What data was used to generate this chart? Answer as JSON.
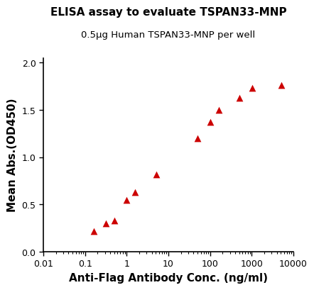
{
  "title_line1": "ELISA assay to evaluate TSPAN33-MNP",
  "title_line2": "0.5μg Human TSPAN33-MNP per well",
  "xlabel": "Anti-Flag Antibody Conc. (ng/ml)",
  "ylabel": "Mean Abs.(OD450)",
  "x_data": [
    0.16,
    0.32,
    0.51,
    1.0,
    1.6,
    5.1,
    51,
    102,
    160,
    512,
    1024,
    5120
  ],
  "y_data": [
    0.22,
    0.3,
    0.33,
    0.55,
    0.63,
    0.82,
    1.2,
    1.37,
    1.5,
    1.63,
    1.73,
    1.76
  ],
  "line_color": "#cc0000",
  "marker_color": "#cc0000",
  "marker": "^",
  "marker_size": 7,
  "line_width": 1.8,
  "xlim_log": [
    0.01,
    10000
  ],
  "ylim": [
    0.0,
    2.05
  ],
  "yticks": [
    0.0,
    0.5,
    1.0,
    1.5,
    2.0
  ],
  "xtick_vals": [
    0.01,
    0.1,
    1,
    10,
    100,
    1000,
    10000
  ],
  "xtick_labels": [
    "0.01",
    "0.1",
    "1",
    "10",
    "100",
    "1000",
    "10000"
  ],
  "background_color": "#ffffff",
  "title_fontsize": 11,
  "subtitle_fontsize": 9.5,
  "axis_label_fontsize": 11,
  "tick_fontsize": 9
}
